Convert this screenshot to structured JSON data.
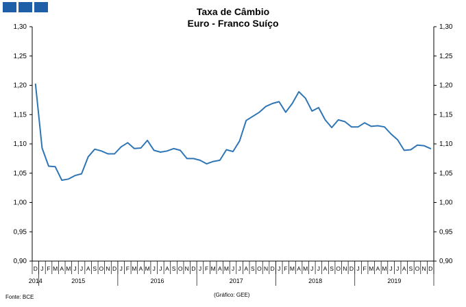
{
  "header": {
    "logo_blocks": 3,
    "logo_color": "#1f5fa8"
  },
  "chart_data": {
    "type": "line",
    "title": "Taxa de Câmbio",
    "subtitle": "Euro - Franco Suíço",
    "ylim": [
      0.9,
      1.3
    ],
    "yticks": [
      "0,90",
      "0,95",
      "1,00",
      "1,05",
      "1,10",
      "1,15",
      "1,20",
      "1,25",
      "1,30"
    ],
    "ytick_values": [
      0.9,
      0.95,
      1.0,
      1.05,
      1.1,
      1.15,
      1.2,
      1.25,
      1.3
    ],
    "x_months": [
      "D",
      "J",
      "F",
      "M",
      "A",
      "M",
      "J",
      "J",
      "A",
      "S",
      "O",
      "N",
      "D",
      "J",
      "F",
      "M",
      "A",
      "M",
      "J",
      "J",
      "A",
      "S",
      "O",
      "N",
      "D",
      "J",
      "F",
      "M",
      "A",
      "M",
      "J",
      "J",
      "A",
      "S",
      "O",
      "N",
      "D",
      "J",
      "F",
      "M",
      "A",
      "M",
      "J",
      "J",
      "A",
      "S",
      "O",
      "N",
      "D",
      "J",
      "F",
      "M",
      "A",
      "M",
      "J",
      "J",
      "A",
      "S",
      "O",
      "N",
      "D"
    ],
    "x_years": [
      {
        "label": "2014",
        "start": 0,
        "end": 0
      },
      {
        "label": "2015",
        "start": 1,
        "end": 12
      },
      {
        "label": "2016",
        "start": 13,
        "end": 24
      },
      {
        "label": "2017",
        "start": 25,
        "end": 36
      },
      {
        "label": "2018",
        "start": 37,
        "end": 48
      },
      {
        "label": "2019",
        "start": 49,
        "end": 60
      }
    ],
    "series": [
      {
        "color": "#2e75b6",
        "values": [
          1.202,
          1.093,
          1.062,
          1.061,
          1.038,
          1.04,
          1.046,
          1.049,
          1.078,
          1.091,
          1.088,
          1.083,
          1.083,
          1.095,
          1.102,
          1.092,
          1.093,
          1.106,
          1.089,
          1.086,
          1.088,
          1.092,
          1.089,
          1.075,
          1.075,
          1.072,
          1.066,
          1.07,
          1.072,
          1.09,
          1.087,
          1.105,
          1.14,
          1.147,
          1.154,
          1.164,
          1.169,
          1.172,
          1.154,
          1.169,
          1.189,
          1.178,
          1.156,
          1.162,
          1.141,
          1.128,
          1.141,
          1.138,
          1.129,
          1.129,
          1.136,
          1.13,
          1.131,
          1.129,
          1.117,
          1.107,
          1.089,
          1.09,
          1.098,
          1.097,
          1.092
        ]
      }
    ],
    "grid": false
  },
  "footer": {
    "source": "Fonte: BCE",
    "credit": "(Gráfico: GEE)"
  }
}
